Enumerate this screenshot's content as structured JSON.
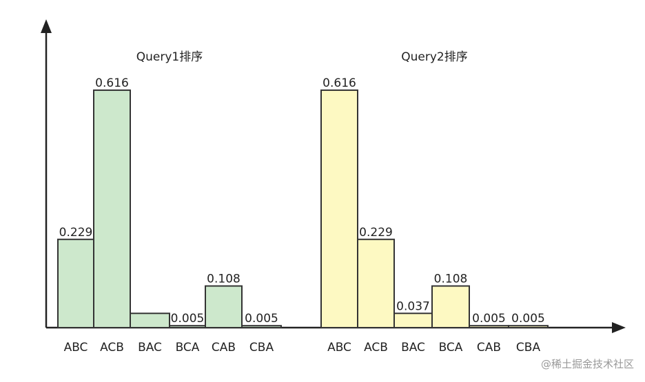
{
  "chart_data": [
    {
      "type": "bar",
      "title": "Query1排序",
      "categories": [
        "ABC",
        "ACB",
        "BAC",
        "BCA",
        "CAB",
        "CBA"
      ],
      "values": [
        0.229,
        0.616,
        0.037,
        0.005,
        0.108,
        0.005
      ],
      "value_labels": [
        "0.229",
        "0.616",
        null,
        "0.005",
        "0.108",
        "0.005"
      ],
      "color": "#cde8cc",
      "ylim": [
        0,
        0.7
      ]
    },
    {
      "type": "bar",
      "title": "Query2排序",
      "categories": [
        "ABC",
        "ACB",
        "BAC",
        "BCA",
        "CAB",
        "CBA"
      ],
      "values": [
        0.616,
        0.229,
        0.037,
        0.108,
        0.005,
        0.005
      ],
      "value_labels": [
        "0.616",
        "0.229",
        "0.037",
        "0.108",
        "0.005",
        "0.005"
      ],
      "color": "#fdf9c2",
      "ylim": [
        0,
        0.7
      ]
    }
  ],
  "watermark": "@稀土掘金技术社区"
}
